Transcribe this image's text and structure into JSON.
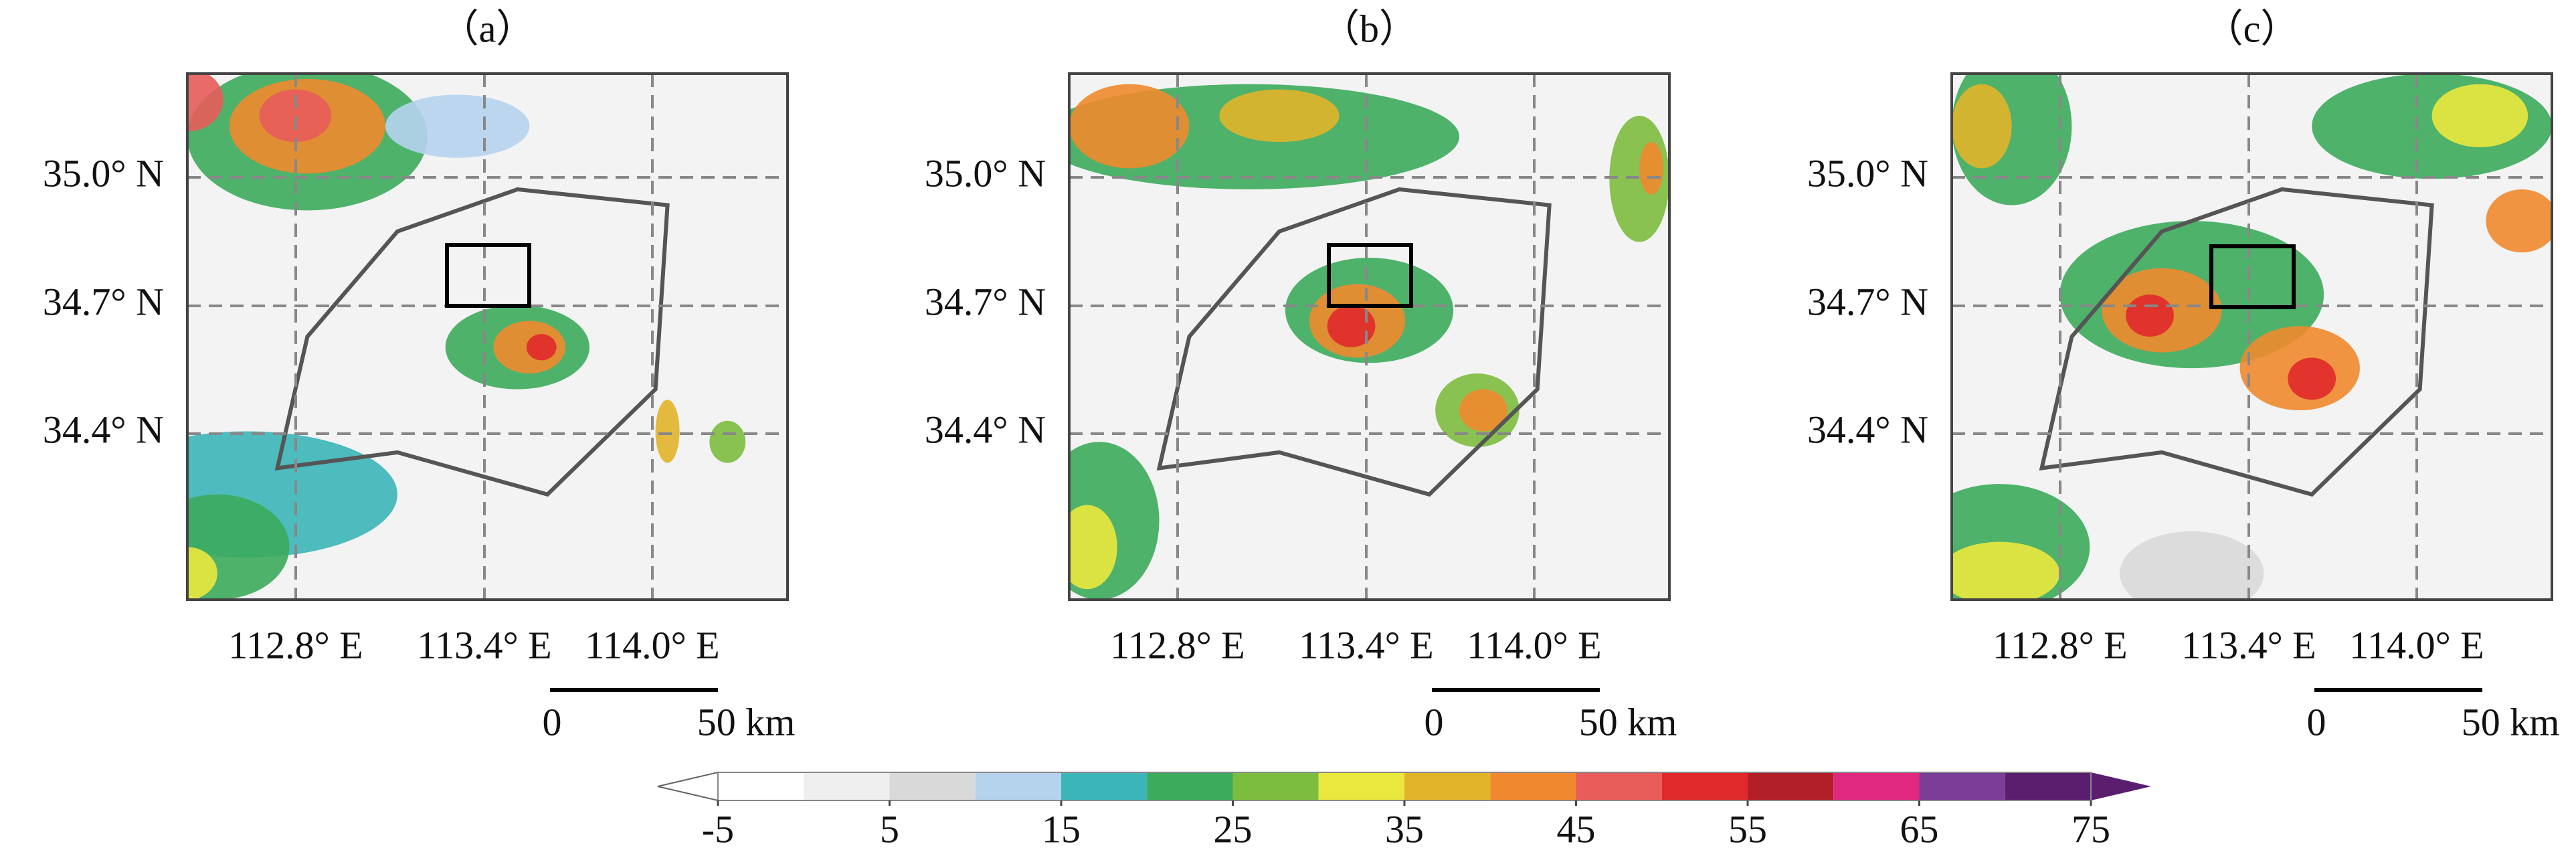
{
  "panels": [
    {
      "label": "（a）"
    },
    {
      "label": "（b）"
    },
    {
      "label": "（c）"
    }
  ],
  "axes": {
    "lat_labels": [
      "35.0° N",
      "34.7° N",
      "34.4° N"
    ],
    "lon_labels": [
      "112.8° E",
      "113.4° E",
      "114.0° E"
    ]
  },
  "scale_bar": {
    "start": "0",
    "end": "50 km"
  },
  "colorbar": {
    "ticks": [
      -5,
      5,
      15,
      25,
      35,
      45,
      55,
      65,
      75
    ],
    "colors": [
      "#ffffff",
      "#efefef",
      "#d9d9d9",
      "#b6d3ee",
      "#3cb5b8",
      "#3cab5c",
      "#7dbd3e",
      "#eae83e",
      "#e2b42a",
      "#f0892e",
      "#e85c5a",
      "#e0292a",
      "#b31f28",
      "#e0297e",
      "#7b3d97",
      "#5b1e6f"
    ]
  }
}
